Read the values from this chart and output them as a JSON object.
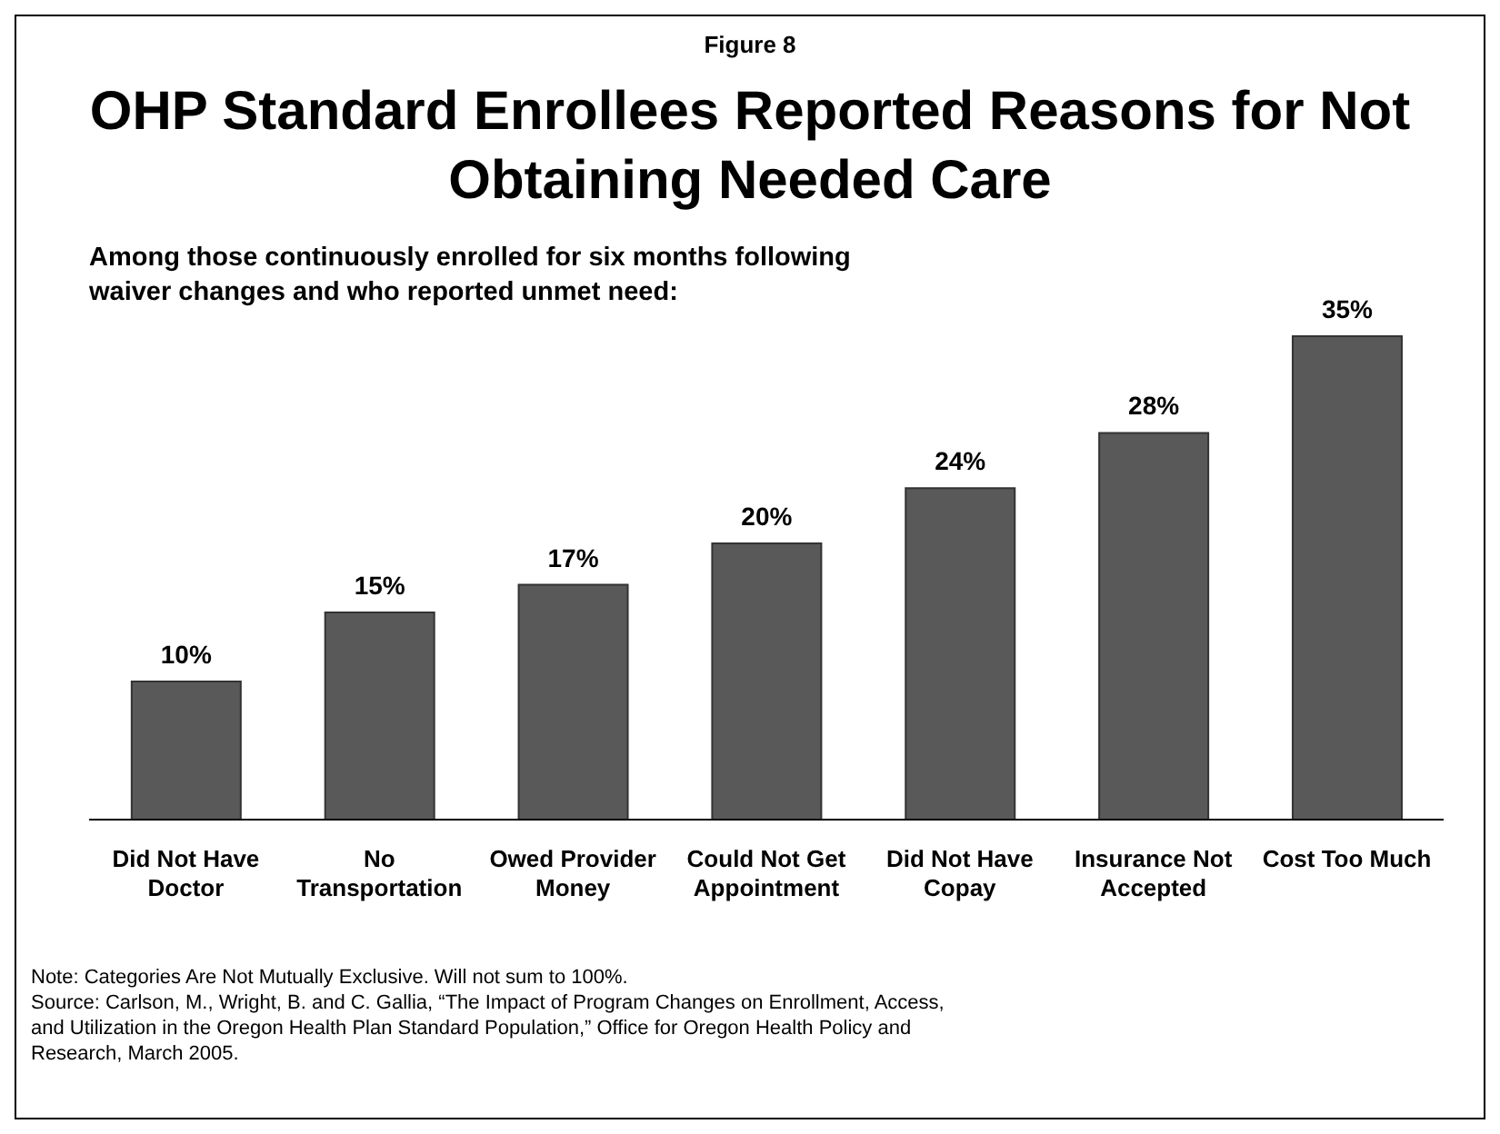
{
  "chart_data": {
    "type": "bar",
    "title": "OHP Standard Enrollees Reported Reasons for Not Obtaining Needed Care",
    "subtitle": "Among those continuously enrolled for six months following waiver changes and who reported unmet need:",
    "annotations": [
      "Figure 8",
      "Note: Categories Are Not Mutually Exclusive.  Will not sum to 100%.",
      "Source: Carlson, M., Wright, B. and C. Gallia, “The Impact of Program Changes on Enrollment, Access, and Utilization in the Oregon Health Plan Standard Population,” Office for Oregon Health Policy and Research, March 2005."
    ],
    "categories": [
      "Did Not Have Doctor",
      "No Transportation",
      "Owed Provider Money",
      "Could Not Get Appointment",
      "Did Not Have Copay",
      "Insurance Not Accepted",
      "Cost Too Much"
    ],
    "values": [
      10,
      15,
      17,
      20,
      24,
      28,
      35
    ],
    "color": "#595959",
    "value_labels": [
      "10%",
      "15%",
      "17%",
      "20%",
      "24%",
      "28%",
      "35%"
    ],
    "grid": false,
    "legend": false
  }
}
